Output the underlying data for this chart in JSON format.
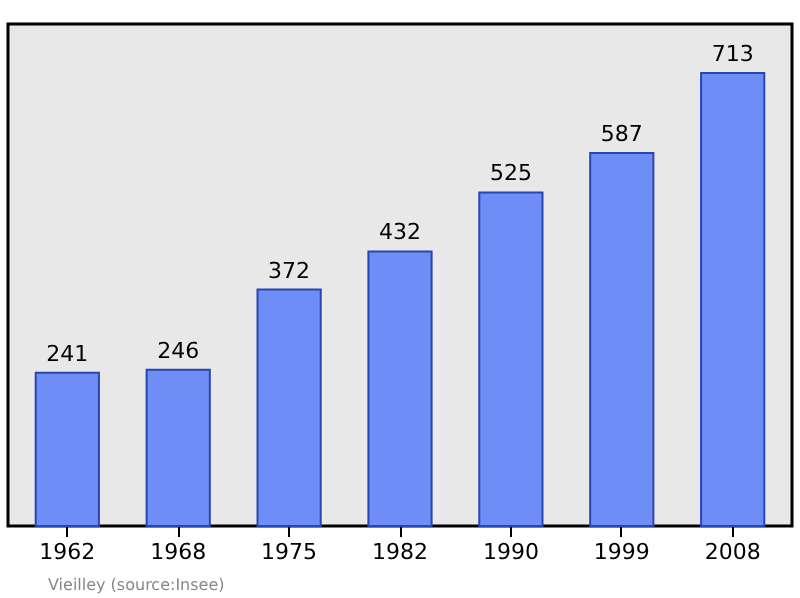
{
  "chart_data": {
    "type": "bar",
    "categories": [
      "1962",
      "1968",
      "1975",
      "1982",
      "1990",
      "1999",
      "2008"
    ],
    "values": [
      241,
      246,
      372,
      432,
      525,
      587,
      713
    ],
    "color": "#6f8ef5",
    "ylim": [
      0,
      790
    ],
    "data_labels": true,
    "annotations": [
      "Vieilley    (source:Insee)"
    ]
  }
}
